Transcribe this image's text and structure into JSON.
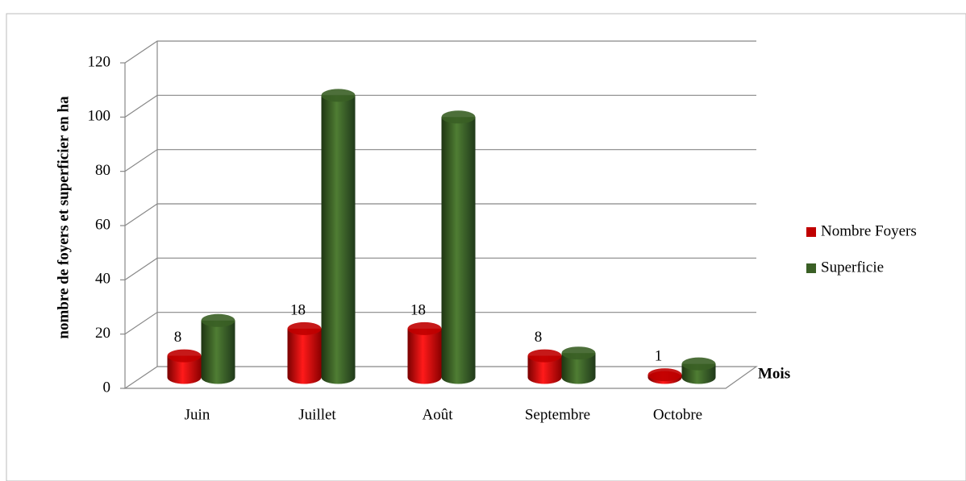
{
  "chart_data": {
    "type": "bar3d",
    "y_axis_label": "nombre de foyers et superficier en ha",
    "x_axis_label": "Mois",
    "categories": [
      "Juin",
      "Juillet",
      "Août",
      "Septembre",
      "Octobre"
    ],
    "series": [
      {
        "name": "Nombre Foyers",
        "color": "#c00000",
        "values": [
          8,
          18,
          18,
          8,
          1
        ]
      },
      {
        "name": "Superficie",
        "color": "#3a5f25",
        "values": [
          21,
          104,
          96,
          9,
          5
        ]
      }
    ],
    "data_labels_series": [
      0
    ],
    "ylim": [
      0,
      120
    ],
    "yticks": [
      0,
      20,
      40,
      60,
      80,
      100,
      120
    ],
    "grid": true,
    "legend": "right"
  }
}
